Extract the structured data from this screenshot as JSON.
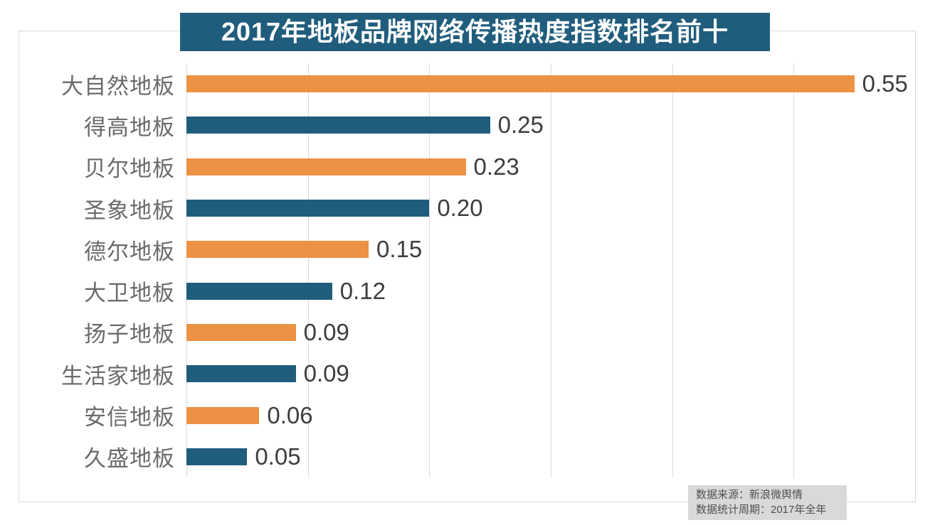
{
  "chart_data": {
    "type": "bar",
    "orientation": "horizontal",
    "title": "2017年地板品牌网络传播热度指数排名前十",
    "categories": [
      "大自然地板",
      "得高地板",
      "贝尔地板",
      "圣象地板",
      "德尔地板",
      "大卫地板",
      "扬子地板",
      "生活家地板",
      "安信地板",
      "久盛地板"
    ],
    "values": [
      0.55,
      0.25,
      0.23,
      0.2,
      0.15,
      0.12,
      0.09,
      0.09,
      0.06,
      0.05
    ],
    "value_labels": [
      "0.55",
      "0.25",
      "0.23",
      "0.20",
      "0.15",
      "0.12",
      "0.09",
      "0.09",
      "0.06",
      "0.05"
    ],
    "xlim": [
      0,
      0.6
    ],
    "grid_step": 0.1,
    "gridlines": "vertical, light gray, every 0.1 from 0 to 0.5",
    "legend_position": "none",
    "bar_color_pattern": "alternating, odd ranks orange, even ranks teal",
    "source_note": {
      "line1": "数据来源：新浪微舆情",
      "line2": "数据统计周期：2017年全年"
    }
  },
  "colors": {
    "bar_orange": "#ED9144",
    "bar_teal": "#205D7D",
    "title_bg": "#205D7D",
    "title_text": "#FFFFFF",
    "category_label": "#6B6B6B",
    "value_label": "#3D3D3D",
    "gridline": "#D9D9D9",
    "frame_border": "#D9D9D9",
    "note_bg": "#D9D9D9",
    "note_text": "#4F4F4F",
    "page_bg": "#FFFFFF"
  }
}
